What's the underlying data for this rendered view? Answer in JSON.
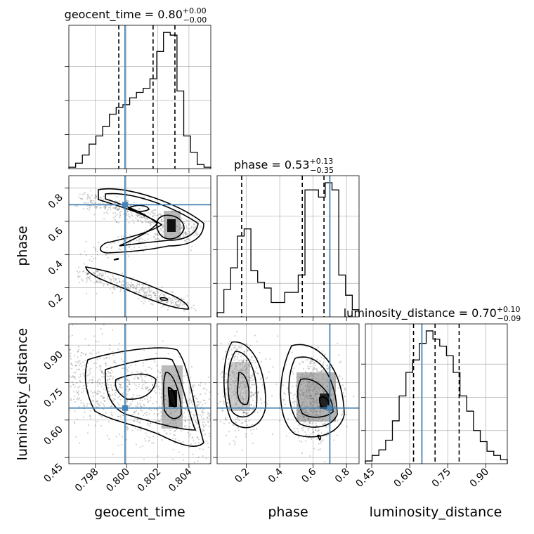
{
  "chart_data": {
    "type": "corner",
    "truth_color": "#4682b4",
    "line_color": "#000000",
    "parameters": [
      {
        "name": "geocent_time",
        "axis_label": "geocent_time",
        "range": [
          0.7963,
          0.8054
        ],
        "ticks": [
          0.798,
          0.8,
          0.802,
          0.804
        ],
        "tick_labels": [
          "0.798",
          "0.800",
          "0.802",
          "0.804"
        ],
        "truth": 0.7999,
        "quantiles": [
          0.7995,
          0.8017,
          0.8031
        ],
        "title_prefix": "geocent_time = 0.80",
        "title_plus": "+0.00",
        "title_minus": "−0.00",
        "hist_counts": [
          1,
          4,
          10,
          18,
          24,
          31,
          40,
          45,
          47,
          52,
          56,
          59,
          66,
          86,
          100,
          98,
          57,
          24,
          12,
          3,
          1
        ]
      },
      {
        "name": "phase",
        "axis_label": "phase",
        "range": [
          0.025,
          0.875
        ],
        "ticks": [
          0.2,
          0.4,
          0.6,
          0.8
        ],
        "tick_labels": [
          "0.2",
          "0.4",
          "0.6",
          "0.8"
        ],
        "truth": 0.7,
        "quantiles": [
          0.172,
          0.535,
          0.665
        ],
        "title_prefix": "phase = 0.53",
        "title_plus": "+0.13",
        "title_minus": "−0.35",
        "hist_counts": [
          3,
          19,
          34,
          56,
          61,
          32,
          24,
          20,
          10,
          10,
          17,
          17,
          29,
          88,
          88,
          83,
          93,
          88,
          29,
          15,
          5
        ]
      },
      {
        "name": "luminosity_distance",
        "axis_label": "luminosity_distance",
        "range": [
          0.425,
          0.985
        ],
        "ticks": [
          0.45,
          0.6,
          0.75,
          0.9
        ],
        "tick_labels": [
          "0.45",
          "0.60",
          "0.75",
          "0.90"
        ],
        "truth": 0.648,
        "quantiles": [
          0.615,
          0.7,
          0.795
        ],
        "title_prefix": "luminosity_distance = 0.70",
        "title_plus": "+0.10",
        "title_minus": "−0.09",
        "hist_counts": [
          2,
          6,
          10,
          17,
          31,
          49,
          66,
          75,
          87,
          96,
          90,
          85,
          78,
          66,
          49,
          38,
          24,
          16,
          9,
          6,
          3
        ]
      }
    ],
    "grid": true
  }
}
